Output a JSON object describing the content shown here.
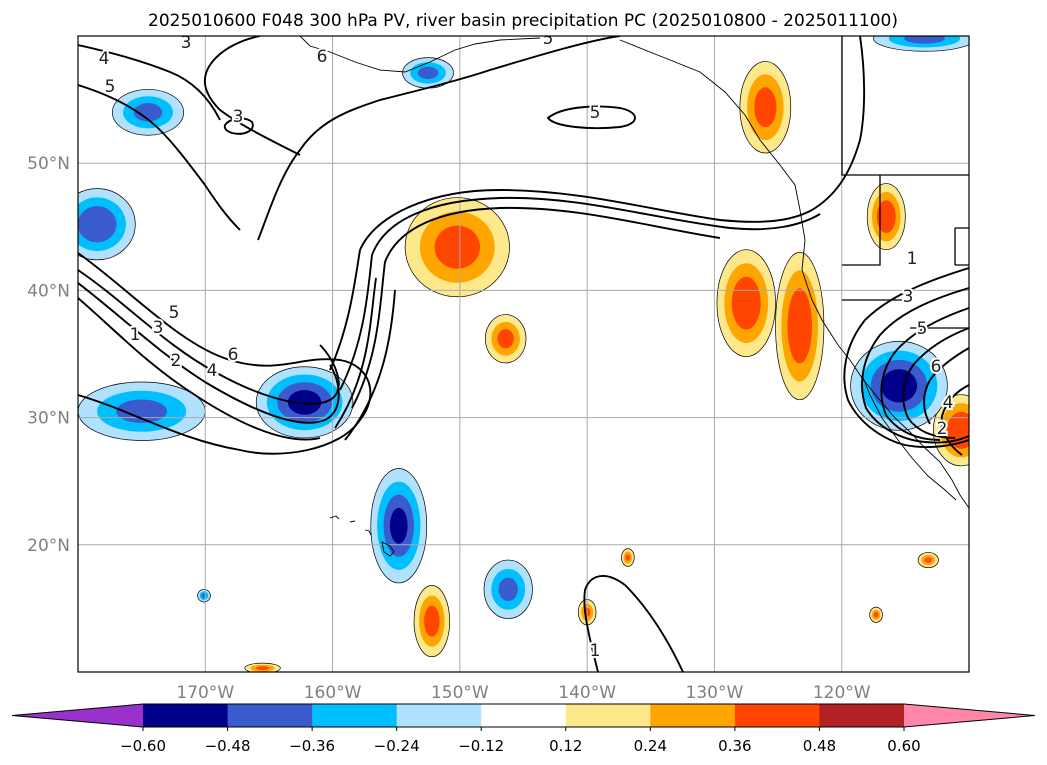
{
  "chart_data": {
    "type": "heatmap",
    "title": "2025010600 F048 300 hPa PV, river basin precipitation PC (2025010800 - 2025011100)",
    "map": {
      "projection": "plate-carree",
      "lon_range": [
        -180,
        -110
      ],
      "lat_range": [
        10,
        60
      ],
      "grid": true
    },
    "x_ticks": [
      {
        "value": -170,
        "label": "170°W"
      },
      {
        "value": -160,
        "label": "160°W"
      },
      {
        "value": -150,
        "label": "150°W"
      },
      {
        "value": -140,
        "label": "140°W"
      },
      {
        "value": -130,
        "label": "130°W"
      },
      {
        "value": -120,
        "label": "120°W"
      }
    ],
    "y_ticks": [
      {
        "value": 20,
        "label": "20°N"
      },
      {
        "value": 30,
        "label": "30°N"
      },
      {
        "value": 40,
        "label": "40°N"
      },
      {
        "value": 50,
        "label": "50°N"
      }
    ],
    "colorbar": {
      "extend": "both",
      "orientation": "horizontal",
      "levels": [
        -0.6,
        -0.48,
        -0.36,
        -0.24,
        -0.12,
        0.12,
        0.24,
        0.36,
        0.48,
        0.6
      ],
      "tick_labels": [
        "−0.60",
        "−0.48",
        "−0.36",
        "−0.24",
        "−0.12",
        "0.12",
        "0.24",
        "0.36",
        "0.48",
        "0.60"
      ],
      "colors": [
        "#9932cc",
        "#00008b",
        "#3a5bcd",
        "#00bfff",
        "#b0e2ff",
        "#ffffff",
        "#fde98b",
        "#ffa500",
        "#ff4500",
        "#b22222",
        "#ff88aa"
      ]
    },
    "pv_contour_labels": [
      "1",
      "2",
      "3",
      "4",
      "5",
      "6"
    ],
    "precip_blobs": [
      {
        "sign": "pos",
        "lon": -150.2,
        "lat": 43.4,
        "rlon": 4.1,
        "rlat": 3.9,
        "value": 0.4
      },
      {
        "sign": "pos",
        "lon": -146.4,
        "lat": 36.2,
        "rlon": 1.6,
        "rlat": 1.9,
        "value": 0.38
      },
      {
        "sign": "pos",
        "lon": -127.5,
        "lat": 39.0,
        "rlon": 2.3,
        "rlat": 4.2,
        "value": 0.44
      },
      {
        "sign": "pos",
        "lon": -123.3,
        "lat": 37.2,
        "rlon": 1.9,
        "rlat": 5.8,
        "value": 0.45
      },
      {
        "sign": "pos",
        "lon": -126.0,
        "lat": 54.4,
        "rlon": 2.0,
        "rlat": 3.6,
        "value": 0.4
      },
      {
        "sign": "pos",
        "lon": -116.5,
        "lat": 45.8,
        "rlon": 1.5,
        "rlat": 2.6,
        "value": 0.44
      },
      {
        "sign": "pos",
        "lon": -110.6,
        "lat": 29.0,
        "rlon": 2.2,
        "rlat": 2.8,
        "value": 0.46
      },
      {
        "sign": "pos",
        "lon": -152.2,
        "lat": 14.0,
        "rlon": 1.4,
        "rlat": 2.8,
        "value": 0.4
      },
      {
        "sign": "pos",
        "lon": -140.0,
        "lat": 14.7,
        "rlon": 0.7,
        "rlat": 1.0,
        "value": 0.36
      },
      {
        "sign": "pos",
        "lon": -136.8,
        "lat": 19.0,
        "rlon": 0.5,
        "rlat": 0.7,
        "value": 0.36
      },
      {
        "sign": "pos",
        "lon": -117.3,
        "lat": 14.5,
        "rlon": 0.5,
        "rlat": 0.6,
        "value": 0.36
      },
      {
        "sign": "pos",
        "lon": -113.2,
        "lat": 18.8,
        "rlon": 0.8,
        "rlat": 0.6,
        "value": 0.36
      },
      {
        "sign": "pos",
        "lon": -165.5,
        "lat": 10.3,
        "rlon": 1.4,
        "rlat": 0.4,
        "value": 0.36
      },
      {
        "sign": "neg",
        "lon": -162.2,
        "lat": 31.2,
        "rlon": 3.8,
        "rlat": 2.8,
        "value": -0.5
      },
      {
        "sign": "neg",
        "lon": -178.5,
        "lat": 45.2,
        "rlon": 3.0,
        "rlat": 2.8,
        "value": -0.45
      },
      {
        "sign": "neg",
        "lon": -175.0,
        "lat": 30.5,
        "rlon": 5.0,
        "rlat": 2.3,
        "value": -0.38
      },
      {
        "sign": "neg",
        "lon": -154.8,
        "lat": 21.5,
        "rlon": 2.2,
        "rlat": 4.5,
        "value": -0.48
      },
      {
        "sign": "neg",
        "lon": -146.2,
        "lat": 16.5,
        "rlon": 1.9,
        "rlat": 2.3,
        "value": -0.38
      },
      {
        "sign": "neg",
        "lon": -115.5,
        "lat": 32.5,
        "rlon": 3.8,
        "rlat": 3.5,
        "value": -0.52
      },
      {
        "sign": "neg",
        "lon": -174.5,
        "lat": 54.0,
        "rlon": 2.8,
        "rlat": 1.8,
        "value": -0.38
      },
      {
        "sign": "neg",
        "lon": -152.5,
        "lat": 57.1,
        "rlon": 2.0,
        "rlat": 1.2,
        "value": -0.38
      },
      {
        "sign": "neg",
        "lon": -113.5,
        "lat": 59.8,
        "rlon": 4.0,
        "rlat": 1.0,
        "value": -0.38
      },
      {
        "sign": "neg",
        "lon": -170.1,
        "lat": 16.0,
        "rlon": 0.5,
        "rlat": 0.5,
        "value": -0.36
      }
    ]
  }
}
